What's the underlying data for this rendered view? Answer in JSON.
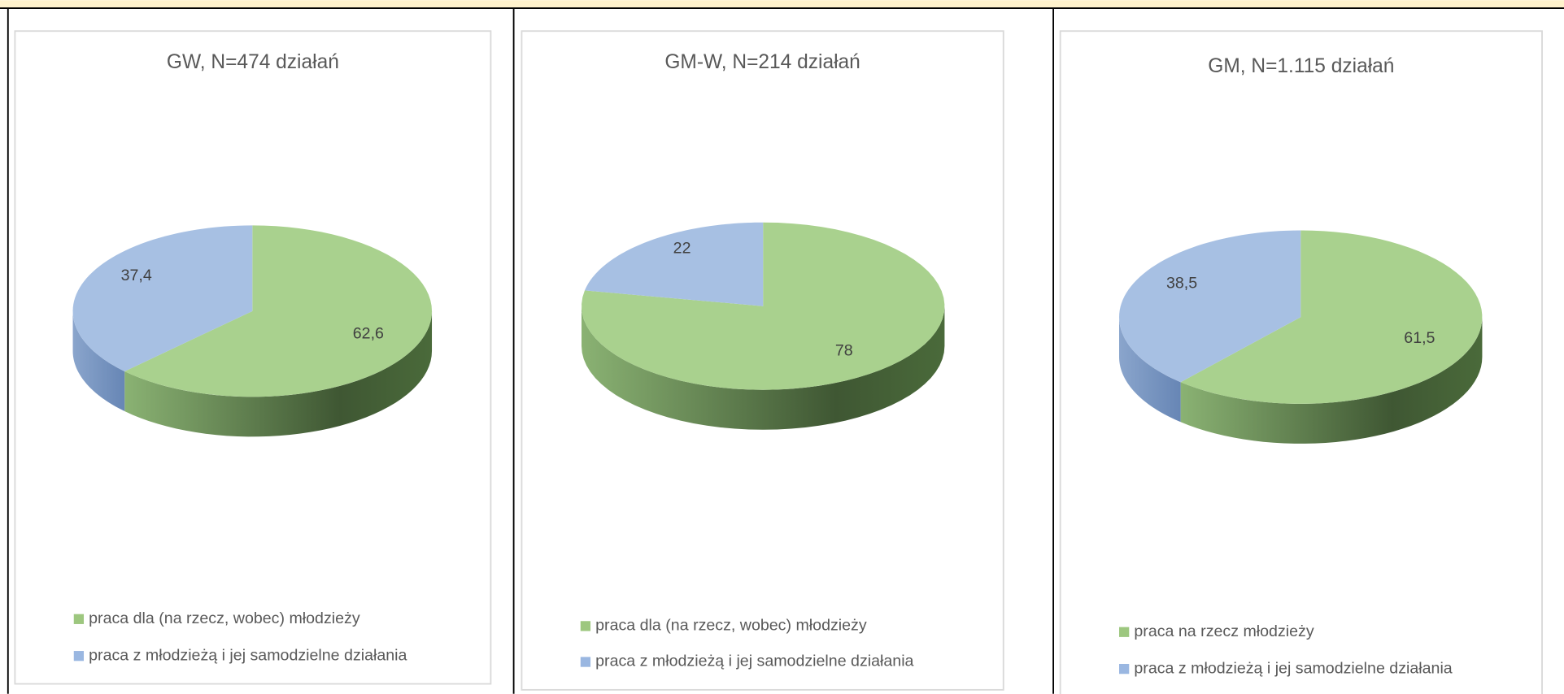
{
  "chart_data": [
    {
      "type": "pie",
      "title": "GW, N=474 działań",
      "categories": [
        "praca dla (na rzecz, wobec) młodzieży",
        "praca z młodzieżą i jej samodzielne działania"
      ],
      "values": [
        62.6,
        37.4
      ],
      "value_labels": [
        "62,6",
        "37,4"
      ],
      "colors": [
        "#9dc77f",
        "#9ab7e1"
      ]
    },
    {
      "type": "pie",
      "title": "GM-W, N=214 działań",
      "categories": [
        "praca dla (na rzecz, wobec) młodzieży",
        "praca z młodzieżą i jej samodzielne działania"
      ],
      "values": [
        78,
        22
      ],
      "colors": [
        "#9dc77f",
        "#9ab7e1"
      ]
    },
    {
      "type": "pie",
      "title": "GM, N=1.115 działań",
      "categories": [
        "praca na rzecz młodzieży",
        "praca z młodzieżą i jej samodzielne działania"
      ],
      "values": [
        61.5,
        38.5
      ],
      "value_labels": [
        "61,5",
        "38,5"
      ],
      "colors": [
        "#9dc77f",
        "#9ab7e1"
      ]
    }
  ]
}
